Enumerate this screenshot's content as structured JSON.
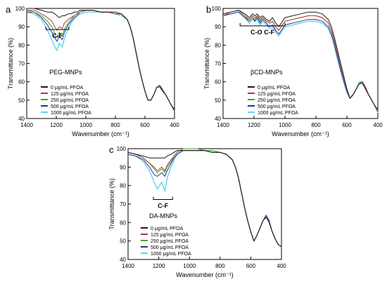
{
  "chart_data": [
    {
      "type": "line",
      "panel_label": "a",
      "sample_label": "PEG-MNPs",
      "annotations": [
        "C-F"
      ],
      "xlabel": "Wavenumber (cm⁻¹)",
      "ylabel": "Transmittance (%)",
      "xlim": [
        1400,
        400
      ],
      "ylim": [
        40,
        100
      ],
      "x_ticks": [
        1400,
        1200,
        1000,
        800,
        600,
        400
      ],
      "y_ticks": [
        40,
        50,
        60,
        70,
        80,
        90,
        100
      ],
      "legend_position": "left",
      "x": [
        1400,
        1350,
        1300,
        1260,
        1230,
        1210,
        1195,
        1180,
        1160,
        1145,
        1120,
        1100,
        1080,
        1060,
        1040,
        1000,
        950,
        900,
        850,
        800,
        760,
        720,
        700,
        680,
        660,
        640,
        620,
        600,
        580,
        560,
        540,
        520,
        500,
        480,
        460,
        440,
        420,
        400
      ],
      "series": [
        {
          "name": "0 μg/mL PFOA",
          "values": [
            100,
            100,
            99,
            98,
            98,
            97,
            96,
            95,
            96,
            96,
            97,
            97,
            98,
            98,
            99,
            99,
            99,
            98,
            98,
            98,
            97,
            94,
            90,
            84,
            76,
            68,
            61,
            55,
            50,
            50,
            53,
            57,
            58,
            55,
            53,
            50,
            47,
            45
          ]
        },
        {
          "name": "125 μg/mL PFOA",
          "values": [
            99,
            99,
            97,
            95,
            93,
            90,
            88,
            90,
            89,
            92,
            94,
            95,
            96,
            97,
            98,
            99,
            99,
            98,
            98,
            97,
            97,
            94,
            90,
            84,
            76,
            68,
            61,
            55,
            50,
            50,
            53,
            57,
            57,
            55,
            53,
            50,
            47,
            44
          ]
        },
        {
          "name": "250 μg/mL PFOA",
          "values": [
            99,
            98,
            96,
            93,
            90,
            86,
            84,
            87,
            85,
            89,
            92,
            94,
            96,
            97,
            98,
            99,
            99,
            98,
            98,
            97,
            97,
            94,
            90,
            84,
            76,
            68,
            61,
            55,
            50,
            50,
            53,
            57,
            58,
            56,
            53,
            50,
            47,
            44
          ]
        },
        {
          "name": "500 μg/mL PFOA",
          "values": [
            98,
            98,
            95,
            91,
            87,
            84,
            82,
            85,
            83,
            87,
            91,
            93,
            95,
            96,
            98,
            99,
            99,
            98,
            98,
            97,
            97,
            94,
            90,
            84,
            76,
            68,
            61,
            55,
            50,
            50,
            53,
            57,
            58,
            55,
            53,
            50,
            47,
            44
          ]
        },
        {
          "name": "1000 μg/mL PFOA",
          "values": [
            98,
            97,
            94,
            88,
            83,
            79,
            77,
            81,
            79,
            84,
            89,
            92,
            94,
            96,
            97,
            98,
            98,
            98,
            98,
            97,
            96,
            94,
            90,
            84,
            76,
            68,
            61,
            55,
            50,
            50,
            53,
            57,
            58,
            55,
            53,
            50,
            47,
            44
          ]
        }
      ]
    },
    {
      "type": "line",
      "panel_label": "b",
      "sample_label": "βCD-MNPs",
      "annotations": [
        "C-O C-F"
      ],
      "xlabel": "Wavenumber (cm⁻¹)",
      "ylabel": "Transmittance (%)",
      "xlim": [
        1400,
        400
      ],
      "ylim": [
        40,
        100
      ],
      "x_ticks": [
        1400,
        1200,
        1000,
        800,
        600,
        400
      ],
      "y_ticks": [
        40,
        50,
        60,
        70,
        80,
        90,
        100
      ],
      "legend_position": "bottom-right",
      "x": [
        1400,
        1350,
        1300,
        1260,
        1230,
        1210,
        1195,
        1180,
        1160,
        1145,
        1120,
        1100,
        1080,
        1060,
        1040,
        1000,
        950,
        900,
        850,
        800,
        760,
        720,
        700,
        680,
        660,
        640,
        620,
        600,
        580,
        560,
        540,
        520,
        500,
        480,
        460,
        440,
        420,
        400
      ],
      "series": [
        {
          "name": "0 μg/mL PFOA",
          "values": [
            97,
            98,
            99,
            97,
            95,
            97,
            96,
            97,
            95,
            96,
            94,
            93,
            95,
            92,
            90,
            95,
            96,
            97,
            98,
            98,
            97,
            94,
            90,
            84,
            77,
            70,
            63,
            56,
            51,
            53,
            56,
            59,
            60,
            57,
            53,
            50,
            47,
            45
          ]
        },
        {
          "name": "125 μg/mL PFOA",
          "values": [
            96,
            98,
            99,
            96,
            94,
            96,
            95,
            96,
            94,
            95,
            93,
            92,
            93,
            90,
            88,
            93,
            94,
            95,
            96,
            96,
            95,
            92,
            88,
            82,
            75,
            68,
            62,
            56,
            51,
            53,
            56,
            59,
            59,
            56,
            53,
            50,
            47,
            44
          ]
        },
        {
          "name": "250 μg/mL PFOA",
          "values": [
            97,
            98,
            99,
            96,
            93,
            95,
            94,
            96,
            93,
            95,
            93,
            92,
            93,
            90,
            88,
            93,
            94,
            95,
            96,
            96,
            95,
            92,
            88,
            82,
            75,
            68,
            62,
            56,
            51,
            53,
            56,
            59,
            59,
            56,
            53,
            50,
            47,
            44
          ]
        },
        {
          "name": "500 μg/mL PFOA",
          "values": [
            96,
            97,
            98,
            95,
            93,
            95,
            93,
            95,
            92,
            94,
            92,
            90,
            91,
            88,
            86,
            91,
            92,
            93,
            94,
            94,
            93,
            90,
            86,
            80,
            73,
            66,
            60,
            55,
            51,
            53,
            56,
            59,
            59,
            56,
            53,
            50,
            47,
            44
          ]
        },
        {
          "name": "1000 μg/mL PFOA",
          "values": [
            96,
            97,
            98,
            95,
            92,
            94,
            93,
            94,
            91,
            93,
            91,
            89,
            90,
            87,
            85,
            90,
            91,
            92,
            93,
            93,
            92,
            89,
            85,
            79,
            72,
            66,
            60,
            54,
            51,
            53,
            56,
            60,
            60,
            57,
            53,
            50,
            47,
            43
          ]
        }
      ]
    },
    {
      "type": "line",
      "panel_label": "c",
      "sample_label": "DA-MNPs",
      "annotations": [
        "C-F"
      ],
      "xlabel": "Wavenumber (cm⁻¹)",
      "ylabel": "Transmittance (%)",
      "xlim": [
        1400,
        400
      ],
      "ylim": [
        40,
        100
      ],
      "x_ticks": [
        1400,
        1200,
        1000,
        800,
        600,
        400
      ],
      "y_ticks": [
        40,
        50,
        60,
        70,
        80,
        90,
        100
      ],
      "legend_position": "left",
      "x": [
        1400,
        1350,
        1300,
        1260,
        1230,
        1210,
        1195,
        1180,
        1160,
        1145,
        1120,
        1100,
        1080,
        1060,
        1040,
        1000,
        950,
        900,
        850,
        800,
        760,
        720,
        700,
        680,
        660,
        640,
        620,
        600,
        580,
        560,
        540,
        520,
        500,
        480,
        460,
        440,
        420,
        400
      ],
      "series": [
        {
          "name": "0 μg/mL PFOA",
          "values": [
            98,
            97,
            96,
            95,
            95,
            95,
            95,
            95,
            95,
            96,
            97,
            98,
            99,
            99,
            99,
            99,
            99,
            99,
            98,
            98,
            97,
            94,
            90,
            84,
            76,
            68,
            61,
            55,
            50,
            53,
            57,
            61,
            63,
            60,
            55,
            51,
            48,
            47
          ]
        },
        {
          "name": "125 μg/mL PFOA",
          "values": [
            98,
            97,
            95,
            92,
            90,
            88,
            89,
            90,
            88,
            91,
            94,
            96,
            98,
            99,
            99,
            99,
            99,
            99,
            98,
            98,
            97,
            94,
            90,
            84,
            76,
            68,
            61,
            55,
            50,
            53,
            57,
            61,
            63,
            60,
            55,
            51,
            48,
            47
          ]
        },
        {
          "name": "250 μg/mL PFOA",
          "values": [
            98,
            97,
            95,
            92,
            89,
            87,
            88,
            89,
            87,
            90,
            93,
            96,
            98,
            99,
            100,
            100,
            100,
            99,
            99,
            98,
            97,
            94,
            90,
            84,
            76,
            68,
            61,
            55,
            50,
            53,
            57,
            61,
            63,
            60,
            55,
            51,
            48,
            47
          ]
        },
        {
          "name": "500 μg/mL PFOA",
          "values": [
            97,
            96,
            94,
            90,
            86,
            85,
            86,
            87,
            85,
            88,
            92,
            95,
            97,
            98,
            99,
            99,
            99,
            99,
            98,
            98,
            97,
            94,
            90,
            84,
            76,
            68,
            61,
            55,
            50,
            53,
            57,
            61,
            64,
            61,
            55,
            51,
            48,
            47
          ]
        },
        {
          "name": "1000 μg/mL PFOA",
          "values": [
            97,
            96,
            93,
            88,
            82,
            78,
            80,
            82,
            77,
            84,
            90,
            94,
            97,
            98,
            99,
            99,
            99,
            99,
            98,
            98,
            97,
            94,
            90,
            84,
            76,
            68,
            61,
            55,
            50,
            53,
            57,
            61,
            63,
            60,
            55,
            51,
            48,
            47
          ]
        }
      ]
    }
  ],
  "colors": {
    "0 μg/mL PFOA": "#1a1a1a",
    "125 μg/mL PFOA": "#b5392e",
    "250 μg/mL PFOA": "#3aa832",
    "500 μg/mL PFOA": "#2b2f9c",
    "1000 μg/mL PFOA": "#5fd3ef"
  }
}
